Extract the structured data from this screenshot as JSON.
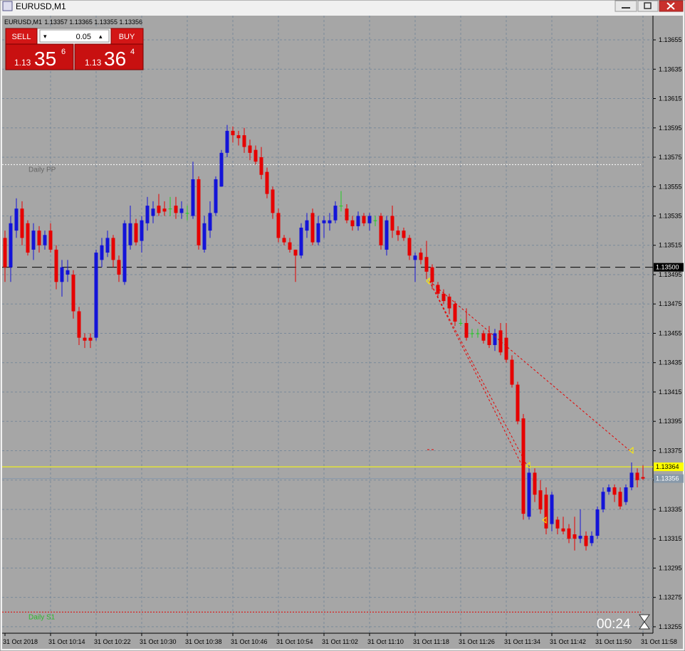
{
  "window_title": "EURUSD,M1",
  "trade_panel": {
    "sell": "SELL",
    "buy": "BUY",
    "lots": "0.05",
    "sell_big": "1.13",
    "sell_pips": "35",
    "sell_frac": "6",
    "buy_big": "1.13",
    "buy_pips": "36",
    "buy_frac": "4"
  },
  "timer": "00:24",
  "chart_data": {
    "type": "candlestick",
    "title": "EURUSD,M1",
    "header_prices": "1.13357 1.13365 1.13355 1.13356",
    "up_color": "#1414d8",
    "down_color": "#e60000",
    "doji_color": "#22cc22",
    "ylim": [
      1.132506,
      1.136715
    ],
    "yticks": [
      1.13655,
      1.13635,
      1.13615,
      1.13595,
      1.13575,
      1.13555,
      1.13535,
      1.13515,
      1.13495,
      1.13475,
      1.13455,
      1.13435,
      1.13415,
      1.13395,
      1.13375,
      1.13355,
      1.13335,
      1.13315,
      1.13295,
      1.13275,
      1.13255
    ],
    "grid": true,
    "categories": [
      "31 Oct 2018",
      null,
      null,
      null,
      null,
      null,
      null,
      null,
      "31 Oct 10:14",
      null,
      null,
      null,
      null,
      null,
      null,
      null,
      "31 Oct 10:22",
      null,
      null,
      null,
      null,
      null,
      null,
      null,
      "31 Oct 10:30",
      null,
      null,
      null,
      null,
      null,
      null,
      null,
      "31 Oct 10:38",
      null,
      null,
      null,
      null,
      null,
      null,
      null,
      "31 Oct 10:46",
      null,
      null,
      null,
      null,
      null,
      null,
      null,
      "31 Oct 10:54",
      null,
      null,
      null,
      null,
      null,
      null,
      null,
      "31 Oct 11:02",
      null,
      null,
      null,
      null,
      null,
      null,
      null,
      "31 Oct 11:10",
      null,
      null,
      null,
      null,
      null,
      null,
      null,
      "31 Oct 11:18",
      null,
      null,
      null,
      null,
      null,
      null,
      null,
      "31 Oct 11:26",
      null,
      null,
      null,
      null,
      null,
      null,
      null,
      "31 Oct 11:34",
      null,
      null,
      null,
      null,
      null,
      null,
      null,
      "31 Oct 11:42",
      null,
      null,
      null,
      null,
      null,
      null,
      null,
      "31 Oct 11:50",
      null,
      null,
      null,
      null,
      null,
      null,
      null,
      "31 Oct 11:58"
    ],
    "open": [
      1.1352,
      1.135,
      1.13525,
      1.1354,
      1.1353,
      1.13512,
      1.13525,
      1.13515,
      1.13525,
      1.13512,
      1.1349,
      1.13495,
      1.13495,
      1.1347,
      1.13452,
      1.13452,
      1.13452,
      1.13505,
      1.1351,
      1.1352,
      1.13505,
      1.1349,
      1.13515,
      1.1353,
      1.13518,
      1.1353,
      1.13535,
      1.13542,
      1.1354,
      1.1354,
      1.13542,
      1.13537,
      1.13537,
      1.13535,
      1.1356,
      1.13512,
      1.13525,
      1.13537,
      1.13555,
      1.13578,
      1.13593,
      1.1359,
      1.1359,
      1.13583,
      1.1358,
      1.13575,
      1.13565,
      1.13553,
      1.13537,
      1.1352,
      1.13517,
      1.13512,
      1.13508,
      1.13525,
      1.13537,
      1.13517,
      1.1353,
      1.1353,
      1.13532,
      1.13542,
      1.1354,
      1.13532,
      1.13528,
      1.13535,
      1.1353,
      1.13532,
      1.13535,
      1.13512,
      1.13535,
      1.13525,
      1.13525,
      1.1352,
      1.13505,
      1.1351,
      1.13507,
      1.135,
      1.13488,
      1.13482,
      1.1348,
      1.13475,
      1.13462,
      1.13462,
      1.13455,
      1.13455,
      1.13455,
      1.13455,
      1.13447,
      1.13457,
      1.13452,
      1.13437,
      1.1342,
      1.13397,
      1.1333,
      1.1336,
      1.13348,
      1.13345,
      1.13325,
      1.13328,
      1.13322,
      1.13322,
      1.13318,
      1.13315,
      1.13317,
      1.13312,
      1.13317,
      1.13335,
      1.13347,
      1.1335,
      1.13347,
      1.1334,
      1.1335,
      1.1336,
      1.13357
    ],
    "high": [
      1.13525,
      1.13535,
      1.13547,
      1.13545,
      1.13532,
      1.1353,
      1.13528,
      1.13525,
      1.1353,
      1.13515,
      1.13505,
      1.13505,
      1.13498,
      1.13473,
      1.13455,
      1.13455,
      1.13512,
      1.1352,
      1.13525,
      1.13522,
      1.13508,
      1.13532,
      1.13542,
      1.13533,
      1.13535,
      1.13548,
      1.13545,
      1.1355,
      1.13545,
      1.13548,
      1.13548,
      1.13545,
      1.13542,
      1.13572,
      1.13562,
      1.13535,
      1.13545,
      1.13562,
      1.1358,
      1.13597,
      1.13596,
      1.13593,
      1.13595,
      1.13587,
      1.13583,
      1.13582,
      1.13568,
      1.13555,
      1.1354,
      1.13522,
      1.1352,
      1.13512,
      1.1353,
      1.13537,
      1.1354,
      1.13535,
      1.13535,
      1.13537,
      1.13545,
      1.13552,
      1.13543,
      1.13535,
      1.13538,
      1.13537,
      1.13537,
      1.13535,
      1.13537,
      1.13535,
      1.13542,
      1.13528,
      1.13527,
      1.13522,
      1.1351,
      1.13513,
      1.13518,
      1.13502,
      1.1349,
      1.13485,
      1.13482,
      1.13477,
      1.13465,
      1.13472,
      1.13458,
      1.13458,
      1.13457,
      1.1346,
      1.13458,
      1.13462,
      1.13462,
      1.1344,
      1.13422,
      1.134,
      1.13365,
      1.13363,
      1.13355,
      1.1335,
      1.13347,
      1.1333,
      1.1333,
      1.13325,
      1.1333,
      1.13335,
      1.1332,
      1.1332,
      1.13337,
      1.1335,
      1.13352,
      1.13352,
      1.1335,
      1.13352,
      1.13367,
      1.13363,
      1.13365
    ],
    "low": [
      1.1349,
      1.1349,
      1.1352,
      1.13515,
      1.13508,
      1.13505,
      1.1351,
      1.13512,
      1.1351,
      1.13485,
      1.1348,
      1.1349,
      1.13465,
      1.13447,
      1.13445,
      1.13445,
      1.1345,
      1.135,
      1.13507,
      1.135,
      1.1349,
      1.13488,
      1.13512,
      1.13515,
      1.1351,
      1.13525,
      1.1353,
      1.13535,
      1.13535,
      1.13535,
      1.13533,
      1.13533,
      1.13532,
      1.13533,
      1.13512,
      1.1351,
      1.1352,
      1.13535,
      1.13555,
      1.13575,
      1.13585,
      1.13583,
      1.13578,
      1.13573,
      1.1357,
      1.1356,
      1.13547,
      1.13533,
      1.13517,
      1.13515,
      1.1351,
      1.1349,
      1.13506,
      1.1352,
      1.13515,
      1.13515,
      1.1352,
      1.13525,
      1.1353,
      1.13538,
      1.1353,
      1.13525,
      1.13525,
      1.13528,
      1.13525,
      1.13528,
      1.13512,
      1.13508,
      1.1352,
      1.13518,
      1.13518,
      1.13505,
      1.1349,
      1.13502,
      1.13492,
      1.13485,
      1.1348,
      1.13475,
      1.13468,
      1.1346,
      1.1346,
      1.1345,
      1.13452,
      1.13452,
      1.13448,
      1.13445,
      1.13443,
      1.1344,
      1.13435,
      1.13418,
      1.13393,
      1.13328,
      1.13328,
      1.1334,
      1.13332,
      1.13318,
      1.1332,
      1.13318,
      1.13318,
      1.13312,
      1.13307,
      1.13312,
      1.13307,
      1.1331,
      1.13315,
      1.13333,
      1.13345,
      1.1334,
      1.13335,
      1.13338,
      1.13348,
      1.1335,
      1.13355
    ],
    "close": [
      1.135,
      1.1353,
      1.1354,
      1.1352,
      1.1351,
      1.13525,
      1.13515,
      1.13522,
      1.13512,
      1.1349,
      1.135,
      1.13498,
      1.1347,
      1.13452,
      1.1345,
      1.1345,
      1.1351,
      1.13515,
      1.1352,
      1.13505,
      1.13495,
      1.1353,
      1.1353,
      1.13517,
      1.13532,
      1.13542,
      1.1354,
      1.13537,
      1.13538,
      1.1354,
      1.13537,
      1.1354,
      1.13537,
      1.1356,
      1.13515,
      1.1353,
      1.13537,
      1.1356,
      1.13578,
      1.13593,
      1.1359,
      1.13588,
      1.13582,
      1.13578,
      1.13572,
      1.13563,
      1.1355,
      1.13537,
      1.1352,
      1.13517,
      1.13512,
      1.13508,
      1.13527,
      1.13532,
      1.13517,
      1.1353,
      1.13532,
      1.13532,
      1.13542,
      1.13542,
      1.13532,
      1.13528,
      1.13535,
      1.1353,
      1.13535,
      1.13532,
      1.13515,
      1.13532,
      1.13525,
      1.13522,
      1.1352,
      1.13508,
      1.13508,
      1.13505,
      1.13497,
      1.1349,
      1.13482,
      1.13477,
      1.13472,
      1.13463,
      1.13462,
      1.13452,
      1.13455,
      1.13455,
      1.1345,
      1.13447,
      1.13455,
      1.13442,
      1.13437,
      1.1342,
      1.13395,
      1.13332,
      1.1336,
      1.13345,
      1.13335,
      1.13322,
      1.13345,
      1.13322,
      1.1332,
      1.13315,
      1.13315,
      1.13317,
      1.1331,
      1.13317,
      1.13335,
      1.13347,
      1.1335,
      1.13345,
      1.13337,
      1.1335,
      1.1336,
      1.13355,
      1.13356
    ],
    "levels": [
      {
        "label": "Daily PP",
        "value": 1.1357,
        "color": "#ffffff"
      },
      {
        "label": "Daily S1",
        "value": 1.13265,
        "color": "#e60000"
      }
    ],
    "hlines": [
      {
        "value": 1.135,
        "label": "1.13500",
        "color": "#000000",
        "text_color": "#ffffff",
        "dash": "14,7"
      },
      {
        "value": 1.13364,
        "label": "1.13364",
        "color": "#ffff00",
        "text_color": "#000000",
        "dash": ""
      },
      {
        "value": 1.13356,
        "label": "1.13356",
        "color": "#8899aa",
        "text_color": "#ffffff",
        "dash": ""
      }
    ]
  }
}
